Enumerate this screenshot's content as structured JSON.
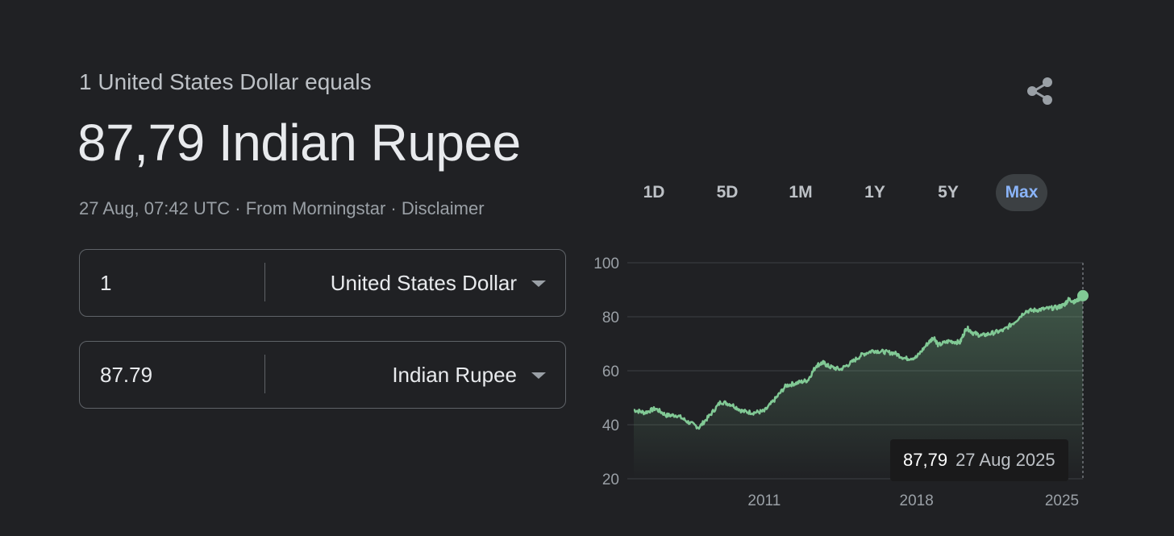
{
  "header": {
    "subtitle": "1 United States Dollar equals",
    "headline": "87,79 Indian Rupee",
    "timestamp": "27 Aug, 07:42 UTC",
    "sep": " · ",
    "source": "From Morningstar",
    "disclaimer": "Disclaimer"
  },
  "share_icon": "share-icon",
  "converter": {
    "from": {
      "amount": "1",
      "currency": "United States Dollar"
    },
    "to": {
      "amount": "87.79",
      "currency": "Indian Rupee"
    }
  },
  "tabs": [
    "1D",
    "5D",
    "1M",
    "1Y",
    "5Y",
    "Max"
  ],
  "active_tab": "Max",
  "colors": {
    "accent": "#8ab4f8",
    "line": "#81c995",
    "background": "#202124"
  },
  "tooltip": {
    "value": "87,79",
    "date": "27 Aug 2025"
  },
  "chart_data": {
    "type": "area",
    "yticks": [
      20,
      40,
      60,
      80,
      100
    ],
    "ylim": [
      20,
      100
    ],
    "xticks": [
      "2011",
      "2018",
      "2025"
    ],
    "xlim": [
      2005.0,
      2025.65
    ],
    "grid": true,
    "x": [
      2005.0,
      2005.5,
      2006.0,
      2006.5,
      2007.0,
      2007.5,
      2008.0,
      2008.5,
      2009.0,
      2009.5,
      2010.0,
      2010.5,
      2011.0,
      2011.5,
      2012.0,
      2012.5,
      2013.0,
      2013.4,
      2013.7,
      2014.0,
      2014.5,
      2015.0,
      2015.5,
      2016.0,
      2016.5,
      2017.0,
      2017.5,
      2018.0,
      2018.5,
      2018.8,
      2019.0,
      2019.5,
      2020.0,
      2020.3,
      2020.6,
      2021.0,
      2021.5,
      2022.0,
      2022.5,
      2023.0,
      2023.5,
      2024.0,
      2024.5,
      2024.8,
      2025.0,
      2025.3,
      2025.65
    ],
    "values": [
      45.5,
      44.5,
      46,
      43.5,
      43.5,
      41,
      39,
      43.5,
      48.5,
      47.5,
      45,
      44.5,
      45,
      49.5,
      54.5,
      55.5,
      56.5,
      62,
      63,
      61.5,
      60.5,
      63,
      66,
      67.5,
      67,
      66.5,
      64.5,
      65,
      70,
      72.5,
      69.5,
      71,
      70.5,
      76,
      74,
      73,
      74,
      75,
      78,
      82,
      82.5,
      83,
      83.5,
      84.5,
      86.5,
      85.5,
      87.79
    ]
  }
}
